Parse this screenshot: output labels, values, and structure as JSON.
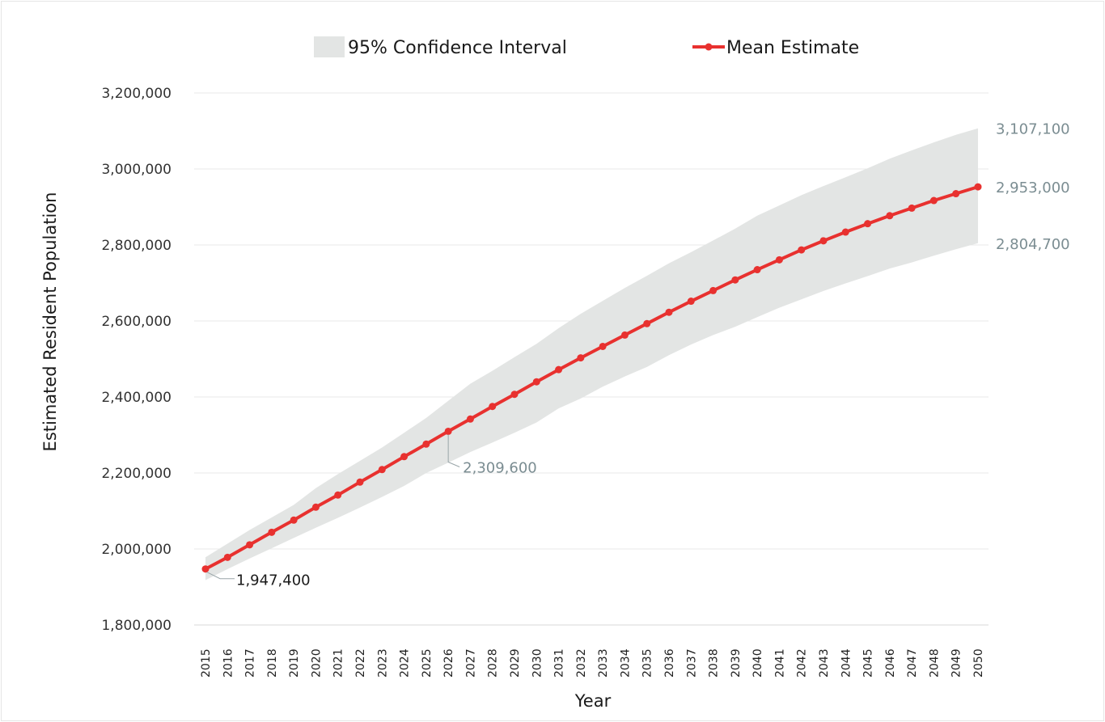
{
  "chart_data": {
    "type": "line",
    "xlabel": "Year",
    "ylabel": "Estimated Resident Population",
    "ylim": [
      1800000,
      3200000
    ],
    "yticks": [
      1800000,
      2000000,
      2200000,
      2400000,
      2600000,
      2800000,
      3000000,
      3200000
    ],
    "ytick_labels": [
      "1,800,000",
      "2,000,000",
      "2,200,000",
      "2,400,000",
      "2,600,000",
      "2,800,000",
      "3,000,000",
      "3,200,000"
    ],
    "grid": "horizontal",
    "legend_position": "top-center",
    "legend": {
      "band_label": "95% Confidence Interval",
      "line_label": "Mean Estimate"
    },
    "x": [
      "2015",
      "2016",
      "2017",
      "2018",
      "2019",
      "2020",
      "2021",
      "2022",
      "2023",
      "2024",
      "2025",
      "2026",
      "2027",
      "2028",
      "2029",
      "2030",
      "2031",
      "2032",
      "2033",
      "2034",
      "2035",
      "2036",
      "2037",
      "2038",
      "2039",
      "2040",
      "2041",
      "2042",
      "2043",
      "2044",
      "2045",
      "2046",
      "2047",
      "2048",
      "2049",
      "2050"
    ],
    "series": [
      {
        "name": "Mean Estimate",
        "color": "#e8312f",
        "values": [
          1947400,
          1978000,
          2011000,
          2044000,
          2076000,
          2110000,
          2142000,
          2176000,
          2209000,
          2243000,
          2276000,
          2309600,
          2342000,
          2375000,
          2407000,
          2440000,
          2472000,
          2503000,
          2533000,
          2563000,
          2593000,
          2623000,
          2652000,
          2680000,
          2708000,
          2735000,
          2761000,
          2787000,
          2811000,
          2834000,
          2856000,
          2877000,
          2897000,
          2917000,
          2935000,
          2953000
        ]
      },
      {
        "name": "95% Confidence Interval",
        "color": "#e3e5e4",
        "lower": [
          1918000,
          1947000,
          1975000,
          2002000,
          2029000,
          2056000,
          2082000,
          2109000,
          2137000,
          2166000,
          2200000,
          2227000,
          2255000,
          2280000,
          2306000,
          2333000,
          2370000,
          2396000,
          2427000,
          2454000,
          2479000,
          2510000,
          2538000,
          2563000,
          2585000,
          2610000,
          2635000,
          2657000,
          2679000,
          2699000,
          2718000,
          2738000,
          2754000,
          2772000,
          2789000,
          2804700
        ],
        "upper": [
          1978000,
          2014000,
          2050000,
          2083000,
          2116000,
          2160000,
          2197000,
          2232000,
          2267000,
          2306000,
          2345000,
          2390000,
          2435000,
          2469000,
          2505000,
          2540000,
          2581000,
          2619000,
          2653000,
          2687000,
          2719000,
          2752000,
          2781000,
          2812000,
          2843000,
          2877000,
          2904000,
          2931000,
          2955000,
          2978000,
          3002000,
          3027000,
          3049000,
          3070000,
          3090000,
          3107100
        ]
      }
    ],
    "annotations": [
      {
        "year": "2015",
        "value": 1947400,
        "text": "1,947,400",
        "style": "dark"
      },
      {
        "year": "2026",
        "value": 2309600,
        "text": "2,309,600",
        "style": "grey"
      },
      {
        "year": "2050",
        "value": 3107100,
        "text": "3,107,100",
        "style": "grey"
      },
      {
        "year": "2050",
        "value": 2953000,
        "text": "2,953,000",
        "style": "grey"
      },
      {
        "year": "2050",
        "value": 2804700,
        "text": "2,804,700",
        "style": "grey"
      }
    ]
  }
}
